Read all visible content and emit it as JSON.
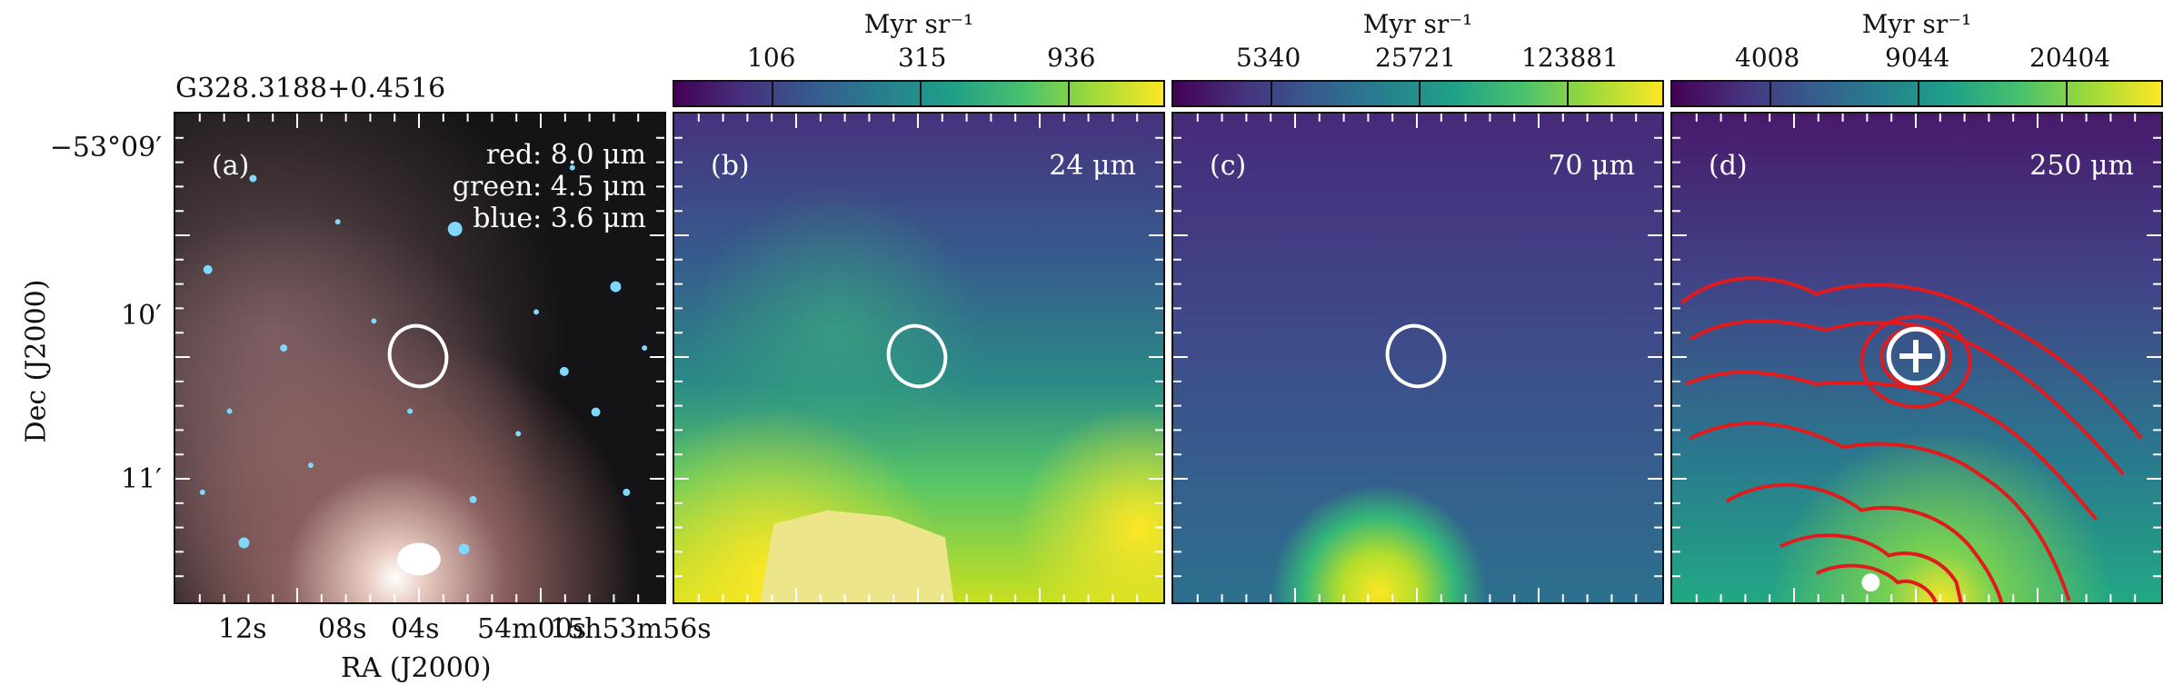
{
  "source_name": "G328.3188+0.4516",
  "colorbars": [
    {
      "unit": "Myr sr⁻¹",
      "ticks": [
        "106",
        "315",
        "936"
      ]
    },
    {
      "unit": "Myr sr⁻¹",
      "ticks": [
        "5340",
        "25721",
        "123881"
      ]
    },
    {
      "unit": "Myr sr⁻¹",
      "ticks": [
        "4008",
        "9044",
        "20404"
      ]
    }
  ],
  "panels": [
    {
      "tag": "(a)",
      "legend": [
        "red: 8.0 μm",
        "green: 4.5 μm",
        "blue: 3.6 μm"
      ]
    },
    {
      "tag": "(b)",
      "wavelength": "24 μm"
    },
    {
      "tag": "(c)",
      "wavelength": "70 μm"
    },
    {
      "tag": "(d)",
      "wavelength": "250 μm"
    }
  ],
  "axes": {
    "ylabel": "Dec (J2000)",
    "xlabel": "RA (J2000)",
    "yticks": [
      "−53°09′",
      "10′",
      "11′"
    ],
    "xticks": [
      "12s",
      "08s",
      "04s",
      "54m00s",
      "15h53m56s"
    ]
  },
  "colors": {
    "contour": "#e31a1c",
    "marker": "#ffffff"
  }
}
